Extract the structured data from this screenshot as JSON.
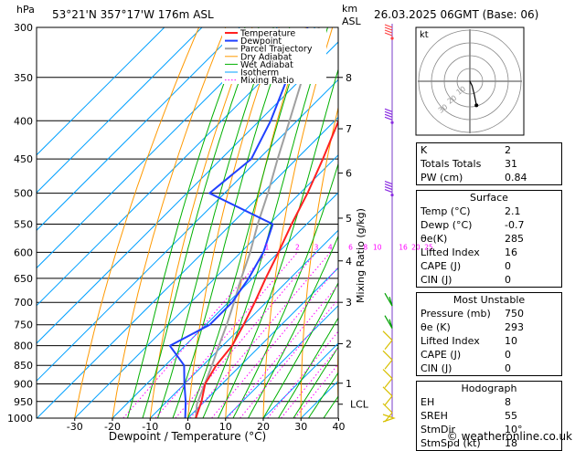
{
  "header": {
    "unit_hpa": "hPa",
    "location": "53°21'N  357°17'W  176m  ASL",
    "km_label": "km",
    "asl_label": "ASL",
    "datetime": "26.03.2025  06GMT  (Base: 06)"
  },
  "footer": {
    "copyright": "© weatheronline.co.uk"
  },
  "colors": {
    "temperature": "#ff2020",
    "dewpoint": "#2040ff",
    "parcel": "#a0a0a0",
    "dry_adiabat": "#ff9900",
    "wet_adiabat": "#00b000",
    "isotherm": "#00a0ff",
    "mixing_ratio": "#ff00ff"
  },
  "chart_data": {
    "type": "skew-t log-p sounding",
    "xlabel": "Dewpoint / Temperature (°C)",
    "ylabel_left": "hPa",
    "ylabel_right": "Mixing Ratio (g/kg)",
    "x_ticks": [
      -30,
      -20,
      -10,
      0,
      10,
      20,
      30,
      40
    ],
    "pressure_levels": [
      300,
      350,
      400,
      450,
      500,
      550,
      600,
      650,
      700,
      750,
      800,
      850,
      900,
      950,
      1000
    ],
    "km_ticks": [
      {
        "km": "8",
        "p": 350
      },
      {
        "km": "7",
        "p": 410
      },
      {
        "km": "6",
        "p": 470
      },
      {
        "km": "5",
        "p": 540
      },
      {
        "km": "4",
        "p": 616
      },
      {
        "km": "3",
        "p": 700
      },
      {
        "km": "2",
        "p": 795
      },
      {
        "km": "1",
        "p": 898
      }
    ],
    "lcl": {
      "label": "LCL",
      "p": 958
    },
    "mixing_ratio_labels": [
      "1",
      "2",
      "3",
      "4",
      "6",
      "8",
      "10",
      "16",
      "20",
      "25"
    ],
    "mixing_ratio_values": [
      1,
      2,
      3,
      4,
      6,
      8,
      10,
      16,
      20,
      25
    ],
    "legend": [
      "Temperature",
      "Dewpoint",
      "Parcel Trajectory",
      "Dry Adiabat",
      "Wet Adiabat",
      "Isotherm",
      "Mixing Ratio"
    ],
    "temperature": [
      {
        "p": 1000,
        "t": 2.1
      },
      {
        "p": 950,
        "t": -0.8
      },
      {
        "p": 900,
        "t": -4.5
      },
      {
        "p": 850,
        "t": -6.5
      },
      {
        "p": 800,
        "t": -7.5
      },
      {
        "p": 750,
        "t": -10
      },
      {
        "p": 700,
        "t": -13
      },
      {
        "p": 650,
        "t": -16.5
      },
      {
        "p": 600,
        "t": -20
      },
      {
        "p": 550,
        "t": -24
      },
      {
        "p": 500,
        "t": -28
      },
      {
        "p": 450,
        "t": -33
      },
      {
        "p": 400,
        "t": -39
      },
      {
        "p": 350,
        "t": -46
      },
      {
        "p": 300,
        "t": -52
      }
    ],
    "dewpoint": [
      {
        "p": 1000,
        "t": -0.7
      },
      {
        "p": 950,
        "t": -5
      },
      {
        "p": 900,
        "t": -10
      },
      {
        "p": 850,
        "t": -15
      },
      {
        "p": 800,
        "t": -24
      },
      {
        "p": 750,
        "t": -19
      },
      {
        "p": 700,
        "t": -19
      },
      {
        "p": 650,
        "t": -21
      },
      {
        "p": 600,
        "t": -24
      },
      {
        "p": 550,
        "t": -29
      },
      {
        "p": 500,
        "t": -54
      },
      {
        "p": 450,
        "t": -52
      },
      {
        "p": 400,
        "t": -57
      },
      {
        "p": 350,
        "t": -64
      },
      {
        "p": 300,
        "t": -72
      }
    ],
    "parcel": [
      {
        "p": 1000,
        "t": 2.1
      },
      {
        "p": 958,
        "t": -1.3
      },
      {
        "p": 900,
        "t": -4.6
      },
      {
        "p": 850,
        "t": -7.6
      },
      {
        "p": 800,
        "t": -11
      },
      {
        "p": 750,
        "t": -14.5
      },
      {
        "p": 700,
        "t": -18.5
      },
      {
        "p": 650,
        "t": -23
      },
      {
        "p": 600,
        "t": -27.5
      },
      {
        "p": 550,
        "t": -33
      },
      {
        "p": 500,
        "t": -38.5
      },
      {
        "p": 450,
        "t": -45
      },
      {
        "p": 400,
        "t": -52
      },
      {
        "p": 350,
        "t": -60
      },
      {
        "p": 300,
        "t": -69
      }
    ]
  },
  "hodograph": {
    "label": "kt",
    "ring_labels": [
      "10",
      "20",
      "30"
    ],
    "points": [
      [
        0,
        0
      ],
      [
        1,
        -2
      ],
      [
        2,
        -6
      ],
      [
        3,
        -11
      ]
    ]
  },
  "indices": {
    "rows": [
      {
        "label": "K",
        "value": "2"
      },
      {
        "label": "Totals Totals",
        "value": "31"
      },
      {
        "label": "PW (cm)",
        "value": "0.84"
      }
    ]
  },
  "surface": {
    "title": "Surface",
    "rows": [
      {
        "label": "Temp (°C)",
        "value": "2.1"
      },
      {
        "label": "Dewp (°C)",
        "value": "-0.7"
      },
      {
        "label": "θe(K)",
        "value": "285"
      },
      {
        "label": "Lifted Index",
        "value": "16"
      },
      {
        "label": "CAPE (J)",
        "value": "0"
      },
      {
        "label": "CIN (J)",
        "value": "0"
      }
    ]
  },
  "unstable": {
    "title": "Most Unstable",
    "rows": [
      {
        "label": "Pressure (mb)",
        "value": "750"
      },
      {
        "label": "θe (K)",
        "value": "293"
      },
      {
        "label": "Lifted Index",
        "value": "10"
      },
      {
        "label": "CAPE (J)",
        "value": "0"
      },
      {
        "label": "CIN (J)",
        "value": "0"
      }
    ]
  },
  "hodo_table": {
    "title": "Hodograph",
    "rows": [
      {
        "label": "EH",
        "value": "8"
      },
      {
        "label": "SREH",
        "value": "55"
      },
      {
        "label": "StmDir",
        "value": "10°"
      },
      {
        "label": "StmSpd (kt)",
        "value": "18"
      }
    ]
  }
}
